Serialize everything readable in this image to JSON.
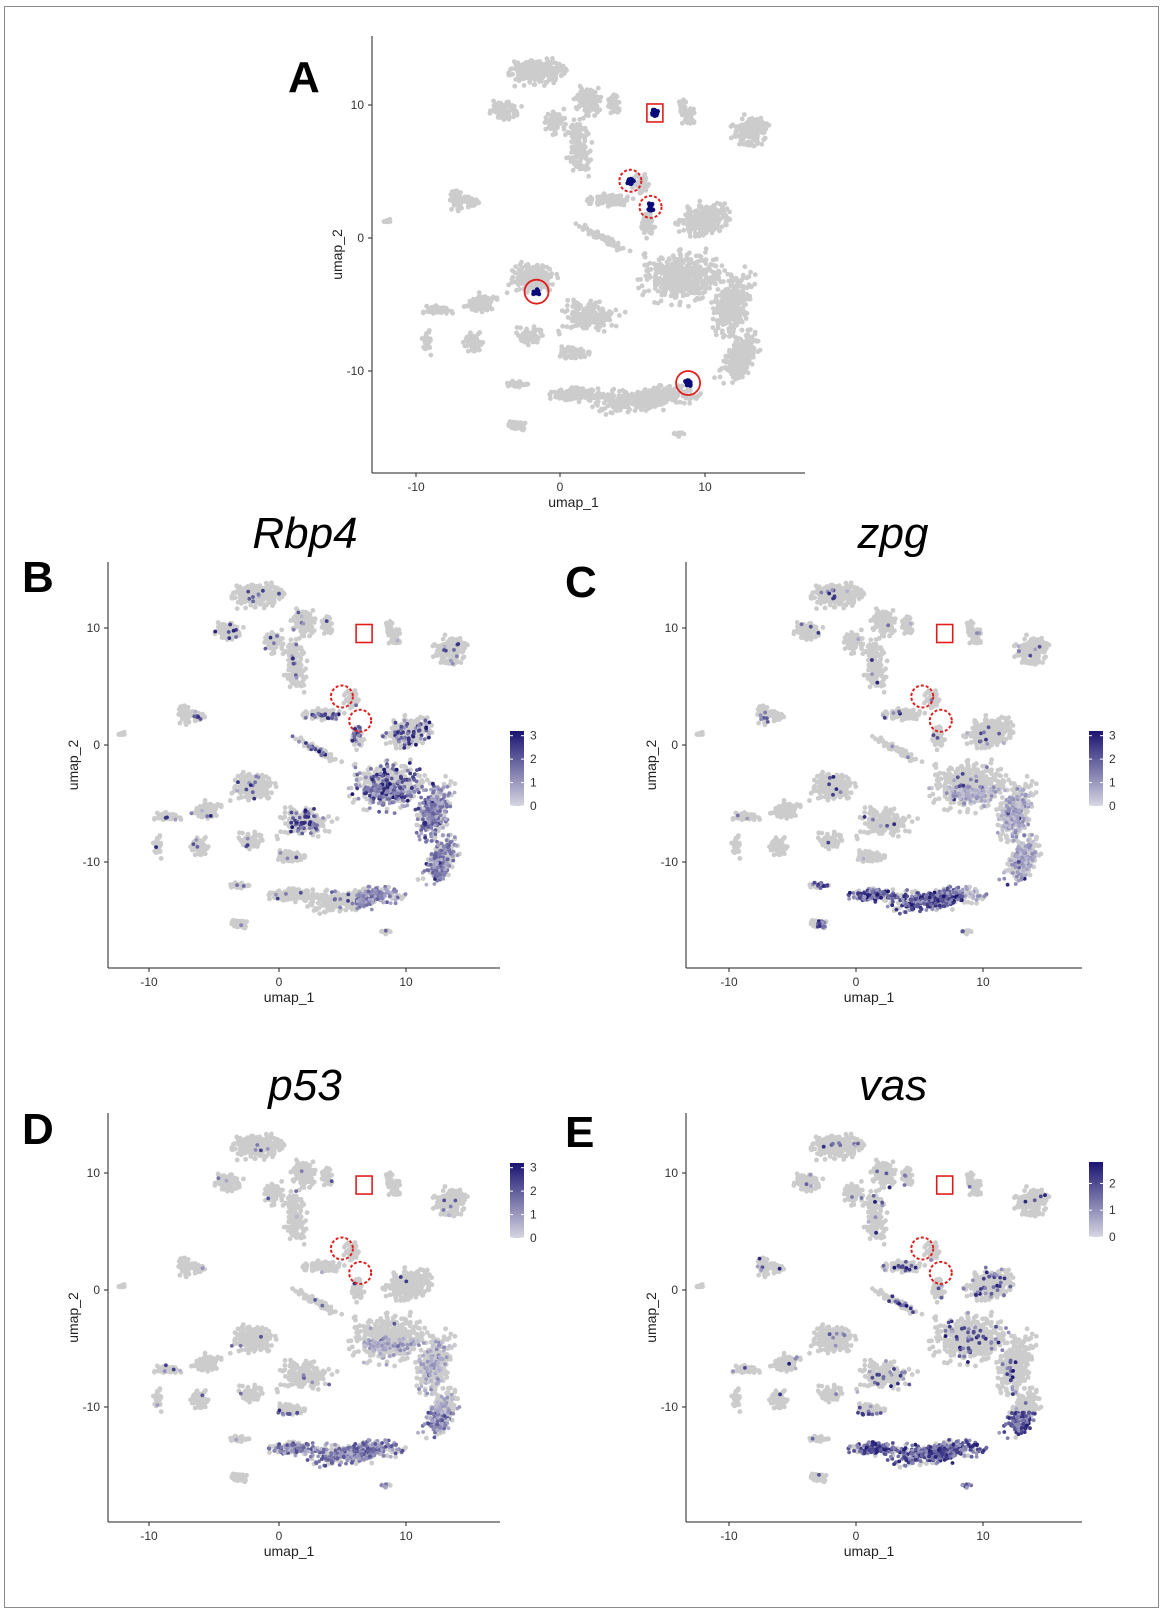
{
  "chart_data": [
    {
      "id": "A",
      "type": "scatter",
      "panel_label": "A",
      "title": "",
      "xlabel": "umap_1",
      "ylabel": "umap_2",
      "xticks": [
        "-10",
        "0",
        "10"
      ],
      "yticks": [
        "10",
        "0",
        "-10"
      ],
      "xlim": [
        -13,
        17
      ],
      "ylim": [
        -18,
        15.5
      ],
      "highlight_color": "#0a0a7a",
      "base_color": "#c8c8c8",
      "highlighted_clusters": [
        {
          "x": 6.6,
          "y": 9.6,
          "marker": "solid-square"
        },
        {
          "x": 4.9,
          "y": 4.4,
          "marker": "dashed-circle"
        },
        {
          "x": 6.3,
          "y": 2.4,
          "marker": "dashed-circle"
        },
        {
          "x": -1.6,
          "y": -4.1,
          "marker": "solid-circle"
        },
        {
          "x": 8.9,
          "y": -11.1,
          "marker": "solid-circle"
        }
      ],
      "legend": false
    },
    {
      "id": "B",
      "type": "scatter",
      "panel_label": "B",
      "title": "Rbp4",
      "xlabel": "umap_1",
      "ylabel": "umap_2",
      "xticks": [
        "-10",
        "0",
        "10"
      ],
      "yticks": [
        "10",
        "0",
        "-10"
      ],
      "xlim": [
        -13,
        17
      ],
      "ylim": [
        -18,
        15.5
      ],
      "legend": {
        "ticks": [
          "3",
          "2",
          "1",
          "0"
        ],
        "min": 0,
        "max": 3.2,
        "low_color": "#d6d6e2",
        "high_color": "#1a1470",
        "placement": "right"
      },
      "expression_hotspots": [
        {
          "region": "central-right body",
          "level": 1.8
        },
        {
          "region": "lower-right arc",
          "level": 1.2
        }
      ]
    },
    {
      "id": "C",
      "type": "scatter",
      "panel_label": "C",
      "title": "zpg",
      "xlabel": "umap_1",
      "ylabel": "umap_2",
      "xticks": [
        "-10",
        "0",
        "10"
      ],
      "yticks": [
        "10",
        "0",
        "-10"
      ],
      "xlim": [
        -13,
        17
      ],
      "ylim": [
        -18,
        15.5
      ],
      "legend": {
        "ticks": [
          "3",
          "2",
          "1",
          "0"
        ],
        "min": 0,
        "max": 3.2,
        "low_color": "#d6d6e2",
        "high_color": "#1a1470",
        "placement": "right"
      },
      "expression_hotspots": [
        {
          "region": "lower-left arc",
          "level": 2.2
        }
      ]
    },
    {
      "id": "D",
      "type": "scatter",
      "panel_label": "D",
      "title": "p53",
      "xlabel": "umap_1",
      "ylabel": "umap_2",
      "xticks": [
        "-10",
        "0",
        "10"
      ],
      "yticks": [
        "10",
        "0",
        "-10"
      ],
      "xlim": [
        -13,
        17
      ],
      "ylim": [
        -18,
        15.5
      ],
      "legend": {
        "ticks": [
          "3",
          "2",
          "1",
          "0"
        ],
        "min": 0,
        "max": 3.2,
        "low_color": "#d6d6e2",
        "high_color": "#1a1470",
        "placement": "right"
      },
      "expression_hotspots": [
        {
          "region": "bottom arc",
          "level": 1.3
        }
      ]
    },
    {
      "id": "E",
      "type": "scatter",
      "panel_label": "E",
      "title": "vas",
      "xlabel": "umap_1",
      "ylabel": "umap_2",
      "xticks": [
        "-10",
        "0",
        "10"
      ],
      "yticks": [
        "10",
        "0",
        "-10"
      ],
      "xlim": [
        -13,
        17
      ],
      "ylim": [
        -18,
        15.5
      ],
      "legend": {
        "ticks": [
          "2",
          "1",
          "0"
        ],
        "min": 0,
        "max": 2.8,
        "low_color": "#d6d6e2",
        "high_color": "#1a1470",
        "placement": "right"
      },
      "expression_hotspots": [
        {
          "region": "bottom arc",
          "level": 1.6
        },
        {
          "region": "central-right body",
          "level": 0.7
        }
      ]
    }
  ]
}
